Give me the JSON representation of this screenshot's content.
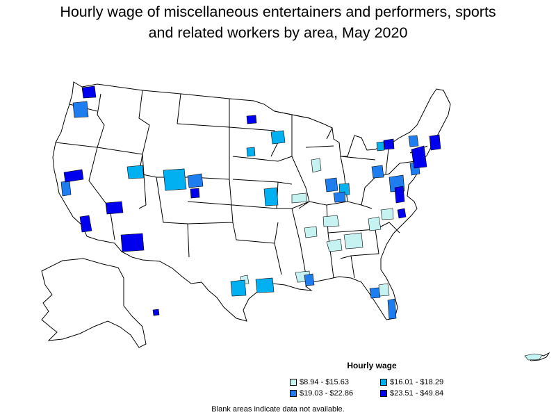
{
  "title": {
    "line1": "Hourly wage of miscellaneous entertainers and performers, sports",
    "line2": "and related workers by area, May 2020"
  },
  "legend": {
    "title": "Hourly wage",
    "items": [
      {
        "label": "$8.94 - $15.63",
        "color": "#c6f2f2"
      },
      {
        "label": "$16.01 - $18.29",
        "color": "#00b0f0"
      },
      {
        "label": "$19.03 - $22.86",
        "color": "#1e7ef0"
      },
      {
        "label": "$23.51 - $49.84",
        "color": "#0000ee"
      }
    ]
  },
  "note": "Blank areas indicate data not available.",
  "colors": {
    "outline": "#000000",
    "background": "#ffffff"
  }
}
